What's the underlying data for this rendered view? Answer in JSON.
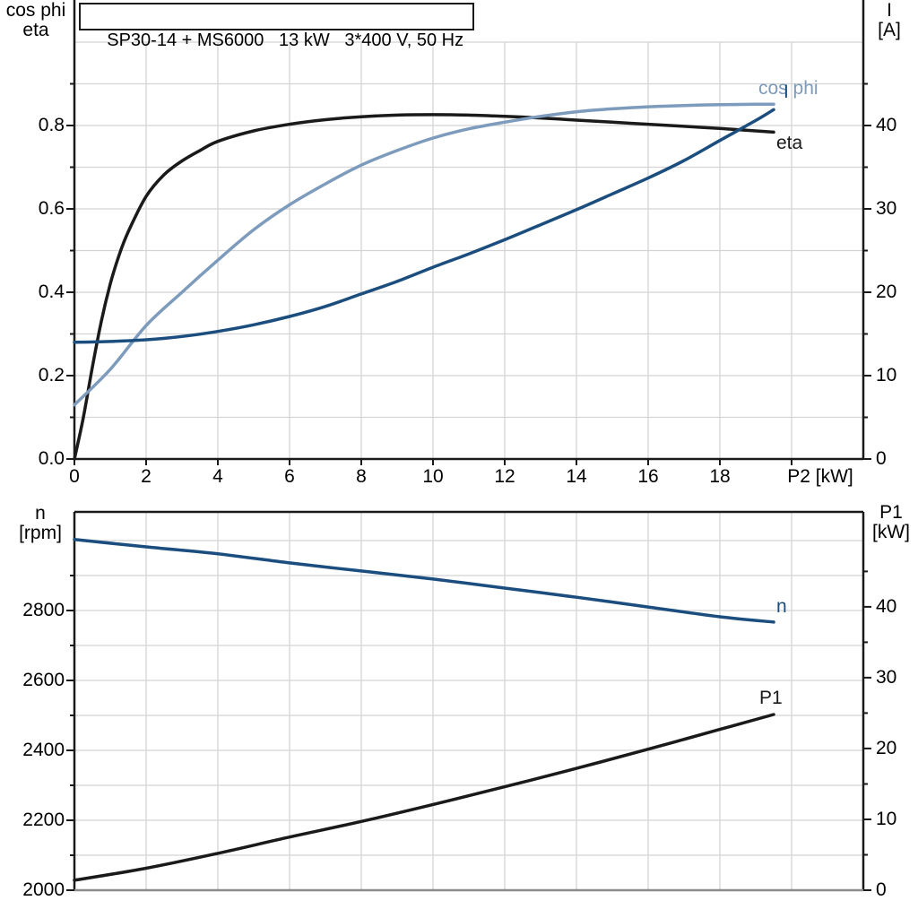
{
  "colors": {
    "curve_black": "#1a1a1a",
    "curve_dark_blue": "#1b4e7e",
    "curve_light_blue": "#7d9bbc",
    "grid": "#d4d4d4",
    "axis": "#1a1a1a",
    "bottom_edge": "#8c8c8c",
    "background": "#ffffff",
    "text": "#000000"
  },
  "chart_data": [
    {
      "type": "line",
      "title": "SP30-14 + MS6000   13 kW   3*400 V, 50 Hz",
      "x_axis": {
        "label": "P2 [kW]",
        "range": [
          0,
          22
        ],
        "tick_values": [
          0,
          2,
          4,
          6,
          8,
          10,
          12,
          14,
          16,
          18
        ],
        "tick_labels": [
          "0",
          "2",
          "4",
          "6",
          "8",
          "10",
          "12",
          "14",
          "16",
          "18"
        ],
        "unlabeled_tick_values": [
          20
        ]
      },
      "left_axis": {
        "title_line1": "cos phi",
        "title_line2": "eta",
        "range": [
          0,
          1.0
        ],
        "tick_values": [
          0.0,
          0.2,
          0.4,
          0.6,
          0.8
        ],
        "tick_labels": [
          "0.0",
          "0.2",
          "0.4",
          "0.6",
          "0.8"
        ],
        "minor_tick_values": [
          0.1,
          0.3,
          0.5,
          0.7,
          0.9
        ],
        "grid_step": 0.1
      },
      "right_axis": {
        "title_line1": "I",
        "title_line2": "[A]",
        "range": [
          0,
          50
        ],
        "tick_values": [
          0,
          10,
          20,
          30,
          40
        ],
        "tick_labels": [
          "0",
          "10",
          "20",
          "30",
          "40"
        ],
        "minor_tick_values": [
          5,
          15,
          25,
          35,
          45
        ]
      },
      "series": [
        {
          "name": "eta",
          "label": "eta",
          "axis": "left",
          "color": "#1a1a1a",
          "x": [
            0,
            0.25,
            0.5,
            0.75,
            1,
            1.25,
            1.5,
            2,
            2.5,
            3,
            3.5,
            4,
            5,
            6,
            7,
            8,
            9,
            10,
            11,
            12,
            13,
            14,
            15,
            16,
            17,
            18,
            19,
            19.5
          ],
          "values": [
            0,
            0.1,
            0.22,
            0.33,
            0.42,
            0.49,
            0.545,
            0.63,
            0.682,
            0.715,
            0.74,
            0.762,
            0.787,
            0.803,
            0.814,
            0.821,
            0.825,
            0.826,
            0.825,
            0.822,
            0.818,
            0.813,
            0.808,
            0.803,
            0.798,
            0.793,
            0.787,
            0.784
          ]
        },
        {
          "name": "cos phi",
          "label": "cos phi",
          "axis": "left",
          "color": "#7d9bbc",
          "x": [
            0,
            1,
            2,
            3,
            4,
            5,
            6,
            7,
            8,
            9,
            10,
            11,
            12,
            13,
            14,
            15,
            16,
            17,
            18,
            19,
            19.5
          ],
          "values": [
            0.13,
            0.215,
            0.32,
            0.4,
            0.477,
            0.55,
            0.61,
            0.66,
            0.705,
            0.74,
            0.77,
            0.792,
            0.808,
            0.822,
            0.833,
            0.84,
            0.845,
            0.848,
            0.85,
            0.851,
            0.851
          ]
        },
        {
          "name": "I",
          "label": "I",
          "axis": "right",
          "color": "#1b4e7e",
          "x": [
            0,
            1,
            2,
            3,
            4,
            5,
            6,
            7,
            8,
            9,
            10,
            11,
            12,
            13,
            14,
            15,
            16,
            17,
            18,
            19,
            19.5
          ],
          "values": [
            14,
            14.1,
            14.3,
            14.7,
            15.3,
            16.1,
            17.1,
            18.3,
            19.8,
            21.3,
            23.0,
            24.6,
            26.3,
            28.1,
            29.9,
            31.8,
            33.7,
            35.8,
            38.2,
            40.6,
            41.9
          ]
        }
      ]
    },
    {
      "type": "line",
      "title": "",
      "x_axis": {
        "label": "",
        "range": [
          0,
          22
        ],
        "tick_values": [],
        "tick_labels": [],
        "unlabeled_tick_values": []
      },
      "left_axis": {
        "title_line1": "n",
        "title_line2": "[rpm]",
        "range": [
          2000,
          3082
        ],
        "tick_values": [
          2000,
          2200,
          2400,
          2600,
          2800
        ],
        "tick_labels": [
          "2000",
          "2200",
          "2400",
          "2600",
          "2800"
        ],
        "minor_tick_values": [
          2100,
          2300,
          2500,
          2700,
          2900
        ],
        "grid_step": 100
      },
      "right_axis": {
        "title_line1": "P1",
        "title_line2": "[kW]",
        "range": [
          0,
          53.4
        ],
        "tick_values": [
          0,
          10,
          20,
          30,
          40
        ],
        "tick_labels": [
          "0",
          "10",
          "20",
          "30",
          "40"
        ],
        "minor_tick_values": [
          5,
          15,
          25,
          35,
          45
        ]
      },
      "series": [
        {
          "name": "n",
          "label": "n",
          "axis": "left",
          "color": "#1b4e7e",
          "x": [
            0,
            2,
            4,
            6,
            8,
            10,
            12,
            14,
            16,
            18,
            19.5
          ],
          "values": [
            3003,
            2982,
            2962,
            2936,
            2913,
            2890,
            2864,
            2838,
            2810,
            2782,
            2767
          ]
        },
        {
          "name": "P1",
          "label": "P1",
          "axis": "right",
          "color": "#1a1a1a",
          "x": [
            0,
            2,
            4,
            6,
            8,
            10,
            12,
            14,
            16,
            18,
            19.5
          ],
          "values": [
            1.4,
            3.1,
            5.2,
            7.5,
            9.7,
            12.1,
            14.6,
            17.2,
            19.9,
            22.7,
            24.8
          ]
        }
      ]
    }
  ]
}
